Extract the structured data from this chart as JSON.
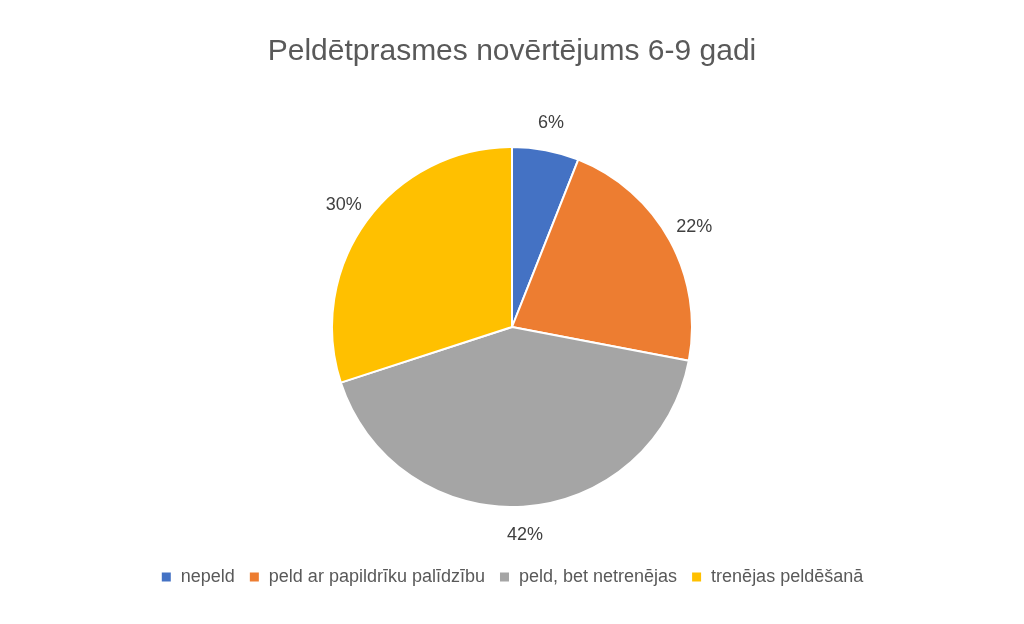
{
  "chart_data": {
    "type": "pie",
    "title": "Peldētprasmes novērtējums 6-9 gadi",
    "categories": [
      "nepeld",
      "peld ar papildrīku palīdzību",
      "peld, bet netrenējas",
      "trenējas peldēšanā"
    ],
    "values": [
      6,
      22,
      42,
      30
    ],
    "colors": [
      "#4472c4",
      "#ed7d31",
      "#a5a5a5",
      "#ffc000"
    ],
    "value_labels": [
      "6%",
      "22%",
      "42%",
      "30%"
    ],
    "legend": "bottom"
  }
}
